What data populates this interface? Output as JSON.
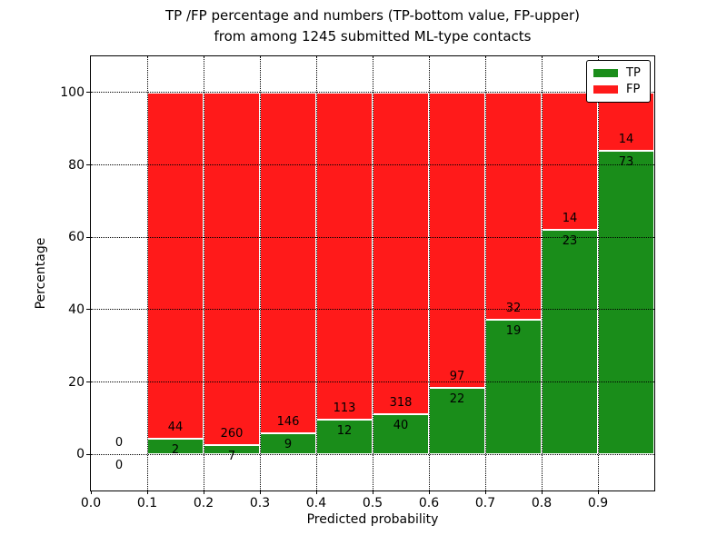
{
  "title": {
    "line1": "TP /FP percentage and numbers (TP-bottom value, FP-upper)",
    "line2": "from among 1245 submitted ML-type contacts"
  },
  "axes": {
    "xlabel": "Predicted probability",
    "ylabel": "Percentage"
  },
  "legend": {
    "position": "upper-right",
    "items": [
      {
        "label": "TP",
        "color": "#1a8d1a"
      },
      {
        "label": "FP",
        "color": "#ff1a1a"
      }
    ]
  },
  "chart_data": {
    "type": "bar",
    "stacked": true,
    "normalized_to_percent": true,
    "title": "TP /FP percentage and numbers (TP-bottom value, FP-upper) from among 1245 submitted ML-type contacts",
    "xlabel": "Predicted probability",
    "ylabel": "Percentage",
    "total_contacts_shown_in_title": 1245,
    "bin_width": 0.1,
    "categories": [
      0.0,
      0.1,
      0.2,
      0.3,
      0.4,
      0.5,
      0.6,
      0.7,
      0.8,
      0.9
    ],
    "series": [
      {
        "name": "TP",
        "color": "#1a8d1a",
        "counts": [
          0,
          2,
          7,
          9,
          12,
          40,
          22,
          19,
          23,
          73
        ]
      },
      {
        "name": "FP",
        "color": "#ff1a1a",
        "counts": [
          0,
          44,
          260,
          146,
          113,
          318,
          97,
          32,
          14,
          14
        ]
      }
    ],
    "bar_labels_note": "TP count below segment boundary, FP count above segment boundary",
    "xlim": [
      0.0,
      1.0
    ],
    "ylim": [
      -10,
      110
    ],
    "x_tick_values": [
      0.0,
      0.1,
      0.2,
      0.3,
      0.4,
      0.5,
      0.6,
      0.7,
      0.8,
      0.9
    ],
    "x_tick_labels": [
      "0.0",
      "0.1",
      "0.2",
      "0.3",
      "0.4",
      "0.5",
      "0.6",
      "0.7",
      "0.8",
      "0.9"
    ],
    "y_tick_values": [
      0,
      20,
      40,
      60,
      80,
      100
    ],
    "y_tick_labels": [
      "0",
      "20",
      "40",
      "60",
      "80",
      "100"
    ],
    "grid": true,
    "grid_style": "dotted",
    "grid_above_bars": true,
    "colors": {
      "tp": "#1a8d1a",
      "fp": "#ff1a1a",
      "bar_edge": "#ffffff",
      "grid": "#000000"
    }
  }
}
